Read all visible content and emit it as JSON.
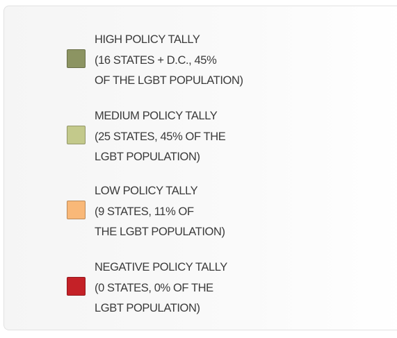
{
  "legend": {
    "items": [
      {
        "lines": [
          "HIGH POLICY TALLY",
          "(16 STATES + D.C., 45%",
          "OF THE LGBT POPULATION)"
        ],
        "color": "#8c9462"
      },
      {
        "lines": [
          "MEDIUM POLICY TALLY",
          "(25 STATES, 45% OF THE",
          "LGBT POPULATION)"
        ],
        "color": "#c3c98b"
      },
      {
        "lines": [
          "LOW POLICY TALLY",
          "(9 STATES, 11% OF",
          "THE LGBT POPULATION)"
        ],
        "color": "#f9b878"
      },
      {
        "lines": [
          "NEGATIVE POLICY TALLY",
          "(0 STATES, 0% OF THE",
          "LGBT POPULATION)"
        ],
        "color": "#c42127"
      }
    ]
  }
}
